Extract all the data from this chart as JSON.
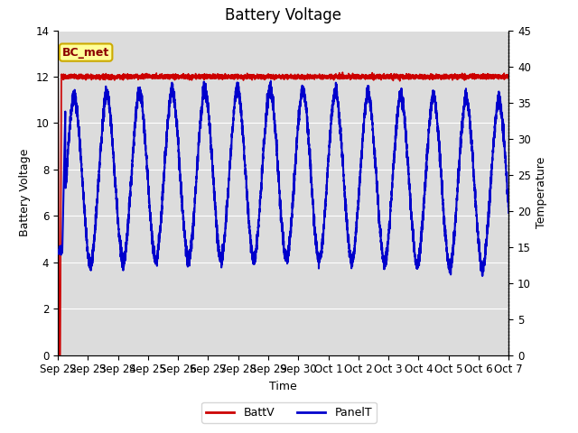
{
  "title": "Battery Voltage",
  "xlabel": "Time",
  "ylabel_left": "Battery Voltage",
  "ylabel_right": "Temperature",
  "ylim_left": [
    0,
    14
  ],
  "ylim_right": [
    0,
    45
  ],
  "xlim": [
    0,
    15
  ],
  "xtick_labels": [
    "Sep 22",
    "Sep 23",
    "Sep 24",
    "Sep 25",
    "Sep 26",
    "Sep 27",
    "Sep 28",
    "Sep 29",
    "Sep 30",
    "Oct 1",
    "Oct 2",
    "Oct 3",
    "Oct 4",
    "Oct 5",
    "Oct 6",
    "Oct 7"
  ],
  "ytick_left": [
    0,
    2,
    4,
    6,
    8,
    10,
    12,
    14
  ],
  "ytick_right": [
    0,
    5,
    10,
    15,
    20,
    25,
    30,
    35,
    40,
    45
  ],
  "background_color": "#dcdcdc",
  "figure_color": "#ffffff",
  "title_fontsize": 12,
  "label_fontsize": 9,
  "tick_fontsize": 8.5,
  "legend_labels": [
    "BattV",
    "PanelT"
  ],
  "legend_colors": [
    "#cc0000",
    "#0000cc"
  ],
  "annotation_text": "BC_met",
  "annotation_bg": "#ffff99",
  "annotation_border": "#ccaa00",
  "batt_linewidth": 1.2,
  "panel_linewidth": 1.5
}
